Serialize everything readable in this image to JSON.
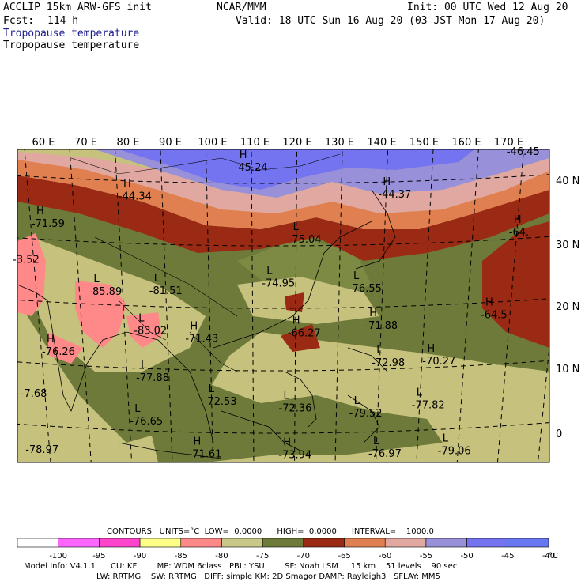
{
  "header": {
    "model": "ACCLIP 15km ARW-GFS init",
    "org": "NCAR/MMM",
    "init": "Init: 00 UTC Wed 12 Aug 20",
    "fcst_label": "Fcst:",
    "fcst_value": "114 h",
    "valid": "Valid: 18 UTC Sun 16 Aug 20 (03 JST Mon 17 Aug 20)",
    "field_blue": "Tropopause temperature",
    "field_black": "Tropopause temperature"
  },
  "map": {
    "lon_labels": [
      "60 E",
      "70 E",
      "80 E",
      "90 E",
      "100 E",
      "110 E",
      "120 E",
      "130 E",
      "140 E",
      "150 E",
      "160 E",
      "170 E"
    ],
    "lat_labels": [
      "40 N",
      "30 N",
      "20 N",
      "10 N",
      "0"
    ],
    "extrema": [
      {
        "sym": "H",
        "val": "-45.24",
        "lon": 108,
        "lat": 42.5
      },
      {
        "sym": "H",
        "val": "-44.34",
        "lon": 82,
        "lat": 37.5
      },
      {
        "sym": "H",
        "val": "-44.37",
        "lon": 140,
        "lat": 38
      },
      {
        "sym": "",
        "val": "-46.45",
        "lon": 168,
        "lat": 44
      },
      {
        "sym": "H",
        "val": "-71.59",
        "lon": 62,
        "lat": 32.5
      },
      {
        "sym": "L",
        "val": "-75.04",
        "lon": 120,
        "lat": 31
      },
      {
        "sym": "H",
        "val": "-64.",
        "lon": 170,
        "lat": 31
      },
      {
        "sym": "",
        "val": "-3.52",
        "lon": 57,
        "lat": 26.5
      },
      {
        "sym": "L",
        "val": "-85.89",
        "lon": 74,
        "lat": 22
      },
      {
        "sym": "L",
        "val": "-81.51",
        "lon": 88,
        "lat": 22.5
      },
      {
        "sym": "L",
        "val": "-74.95",
        "lon": 114,
        "lat": 24
      },
      {
        "sym": "L",
        "val": "-76.55",
        "lon": 134,
        "lat": 23
      },
      {
        "sym": "H",
        "val": "-64.5",
        "lon": 165,
        "lat": 18
      },
      {
        "sym": "H",
        "val": "-71.88",
        "lon": 138,
        "lat": 17
      },
      {
        "sym": "H",
        "val": "-66.27",
        "lon": 120,
        "lat": 16
      },
      {
        "sym": "L",
        "val": "-83.02",
        "lon": 84,
        "lat": 16
      },
      {
        "sym": "H",
        "val": "-71.43",
        "lon": 96,
        "lat": 15
      },
      {
        "sym": "H",
        "val": "-76.26",
        "lon": 62,
        "lat": 12
      },
      {
        "sym": "L",
        "val": "-72.98",
        "lon": 140,
        "lat": 11
      },
      {
        "sym": "H",
        "val": "-70.27",
        "lon": 152,
        "lat": 11
      },
      {
        "sym": "L",
        "val": "-77.88",
        "lon": 84,
        "lat": 8.5
      },
      {
        "sym": "",
        "val": "-7.68",
        "lon": 56,
        "lat": 5
      },
      {
        "sym": "L",
        "val": "-72.53",
        "lon": 100,
        "lat": 5
      },
      {
        "sym": "L",
        "val": "-72.36",
        "lon": 118,
        "lat": 4
      },
      {
        "sym": "L",
        "val": "-79.52",
        "lon": 135,
        "lat": 3
      },
      {
        "sym": "L",
        "val": "-77.82",
        "lon": 150,
        "lat": 4
      },
      {
        "sym": "L",
        "val": "-76.65",
        "lon": 82,
        "lat": 1.5
      },
      {
        "sym": "",
        "val": "-78.97",
        "lon": 56,
        "lat": -4
      },
      {
        "sym": "H",
        "val": "-71.61",
        "lon": 96,
        "lat": -3.5
      },
      {
        "sym": "H",
        "val": "-73.94",
        "lon": 118,
        "lat": -3.5
      },
      {
        "sym": "L",
        "val": "-76.97",
        "lon": 140,
        "lat": -3.5
      },
      {
        "sym": "L",
        "val": "-79.06",
        "lon": 157,
        "lat": -3.5
      }
    ]
  },
  "contours_line": "CONTOURS:  UNITS=°C  LOW=  0.0000      HIGH=  0.0000      INTERVAL=    1000.0",
  "legend": {
    "ticks": [
      "-100",
      "-95",
      "-90",
      "-85",
      "-80",
      "-75",
      "-70",
      "-65",
      "-60",
      "-55",
      "-50",
      "-45",
      "-40"
    ],
    "unit": "°C",
    "colors": [
      "#ffffff",
      "#ff66ff",
      "#ff44cc",
      "#ffff88",
      "#ff8888",
      "#c8c888",
      "#6e7a3a",
      "#9b2a14",
      "#e08050",
      "#e0a8a0",
      "#9890d8",
      "#7474f0",
      "#6878f0"
    ]
  },
  "model_info": {
    "line1": "Model Info: V4.1.1      CU: KF        MP: WDM 6class   PBL: YSU        SF: Noah LSM     15 km    51 levels    90 sec",
    "line2": "LW: RRTMG    SW: RRTMG   DIFF: simple KM: 2D Smagor DAMP: Rayleigh3   SFLAY: MM5"
  }
}
